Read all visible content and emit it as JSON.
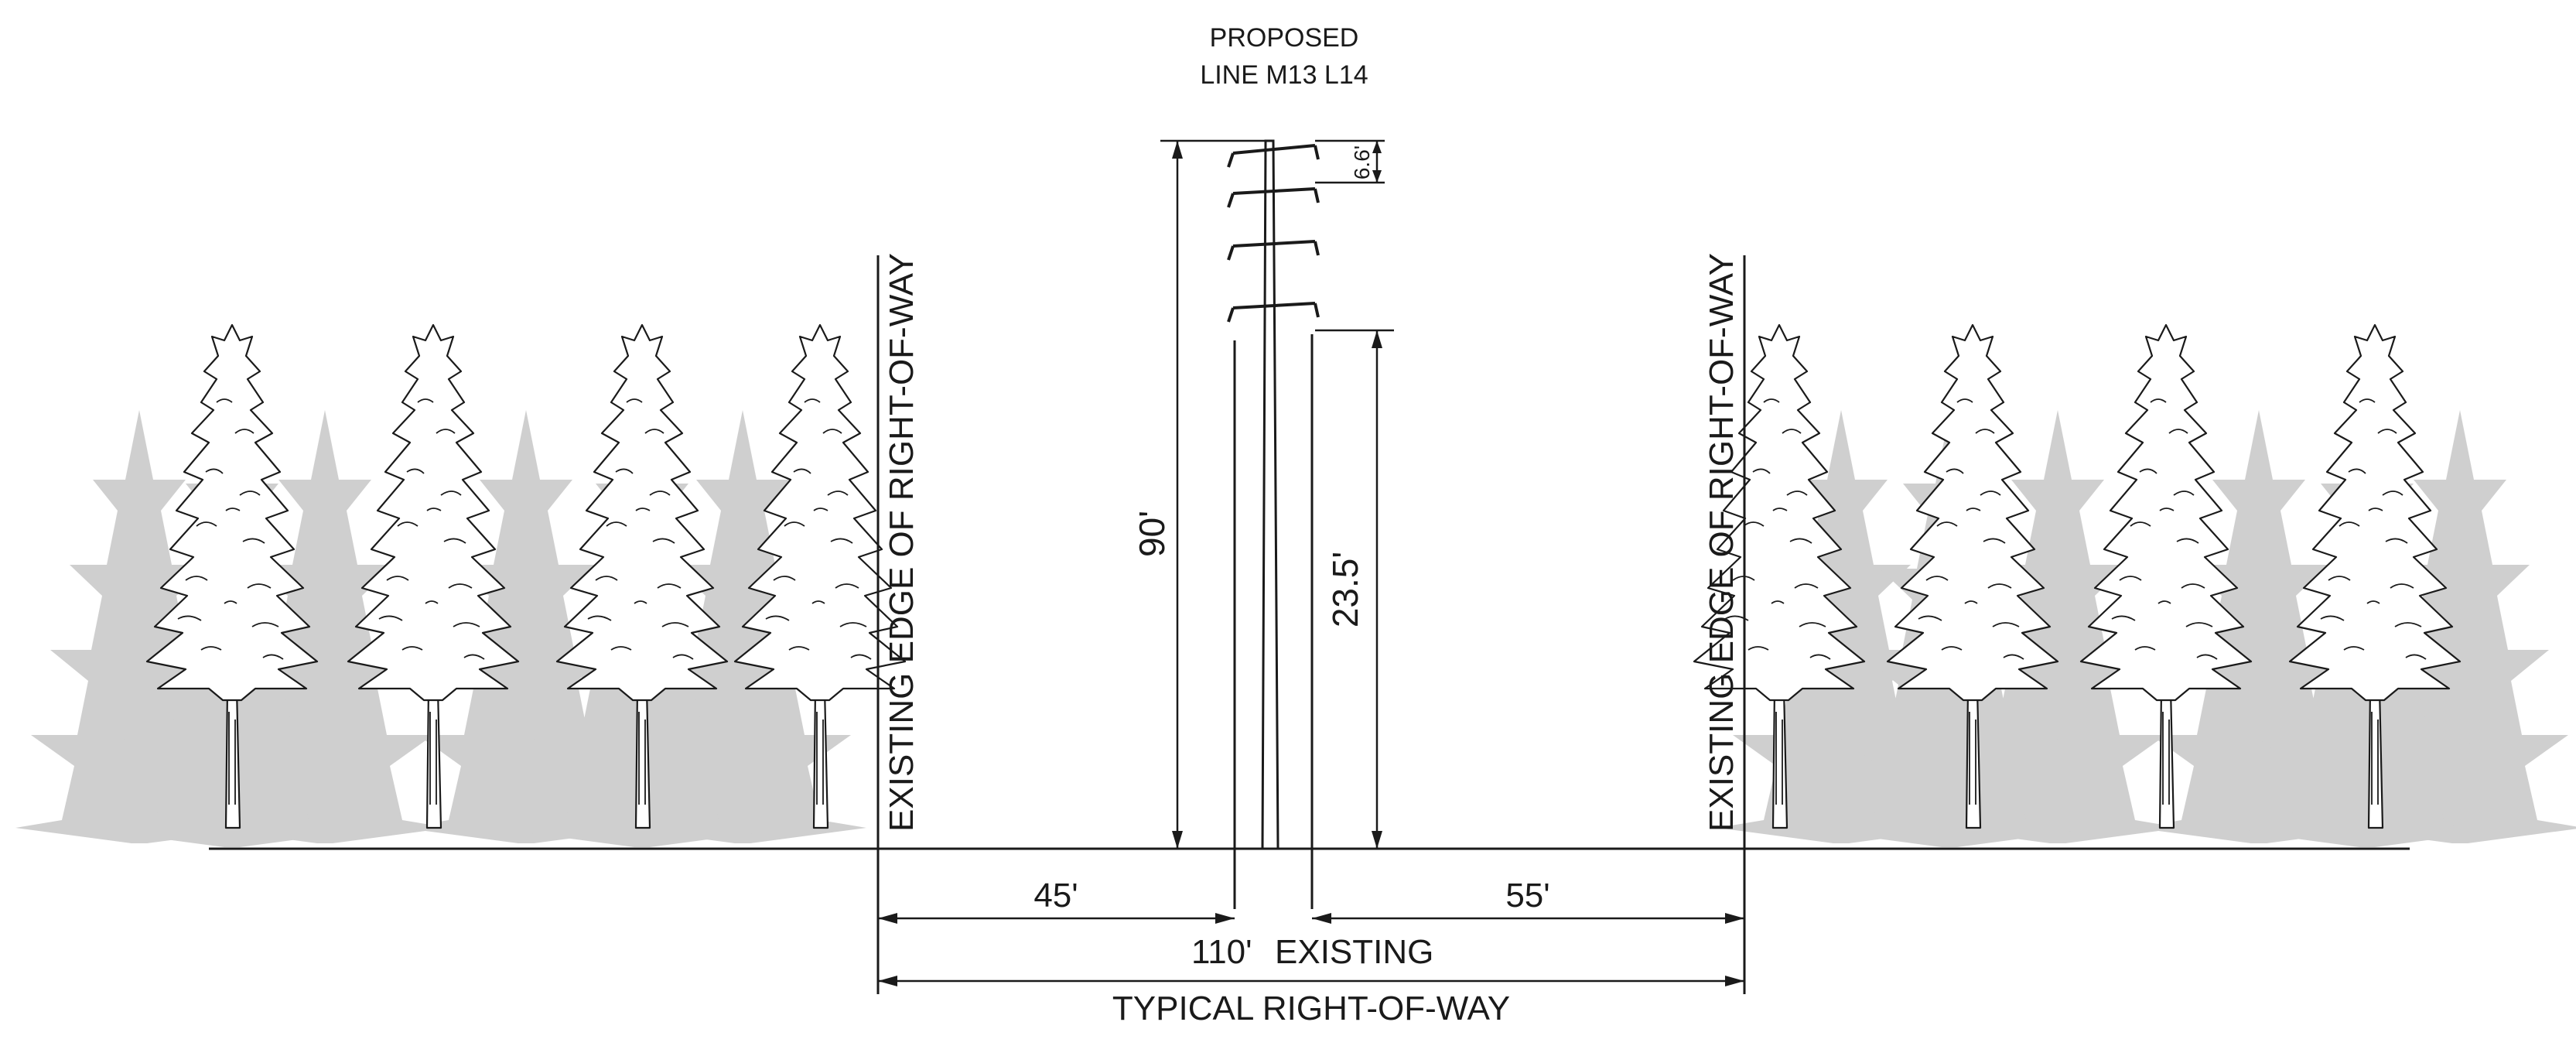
{
  "title": {
    "line1": "PROPOSED",
    "line2": "LINE M13 L14"
  },
  "structure_height": "90'",
  "top_arm_spacing": "6.6'",
  "conductor_clearance": "23.5'",
  "row_edge_left_label": "EXISTING EDGE OF RIGHT-OF-WAY",
  "row_edge_right_label": "EXISTING EDGE OF RIGHT-OF-WAY",
  "offset_left": "45'",
  "offset_right": "55'",
  "row_width": "110'",
  "row_status": "EXISTING",
  "caption": "TYPICAL RIGHT-OF-WAY",
  "colors": {
    "ink": "#1a1a1a",
    "tree_fill": "#cfcfcf",
    "background": "#ffffff"
  }
}
